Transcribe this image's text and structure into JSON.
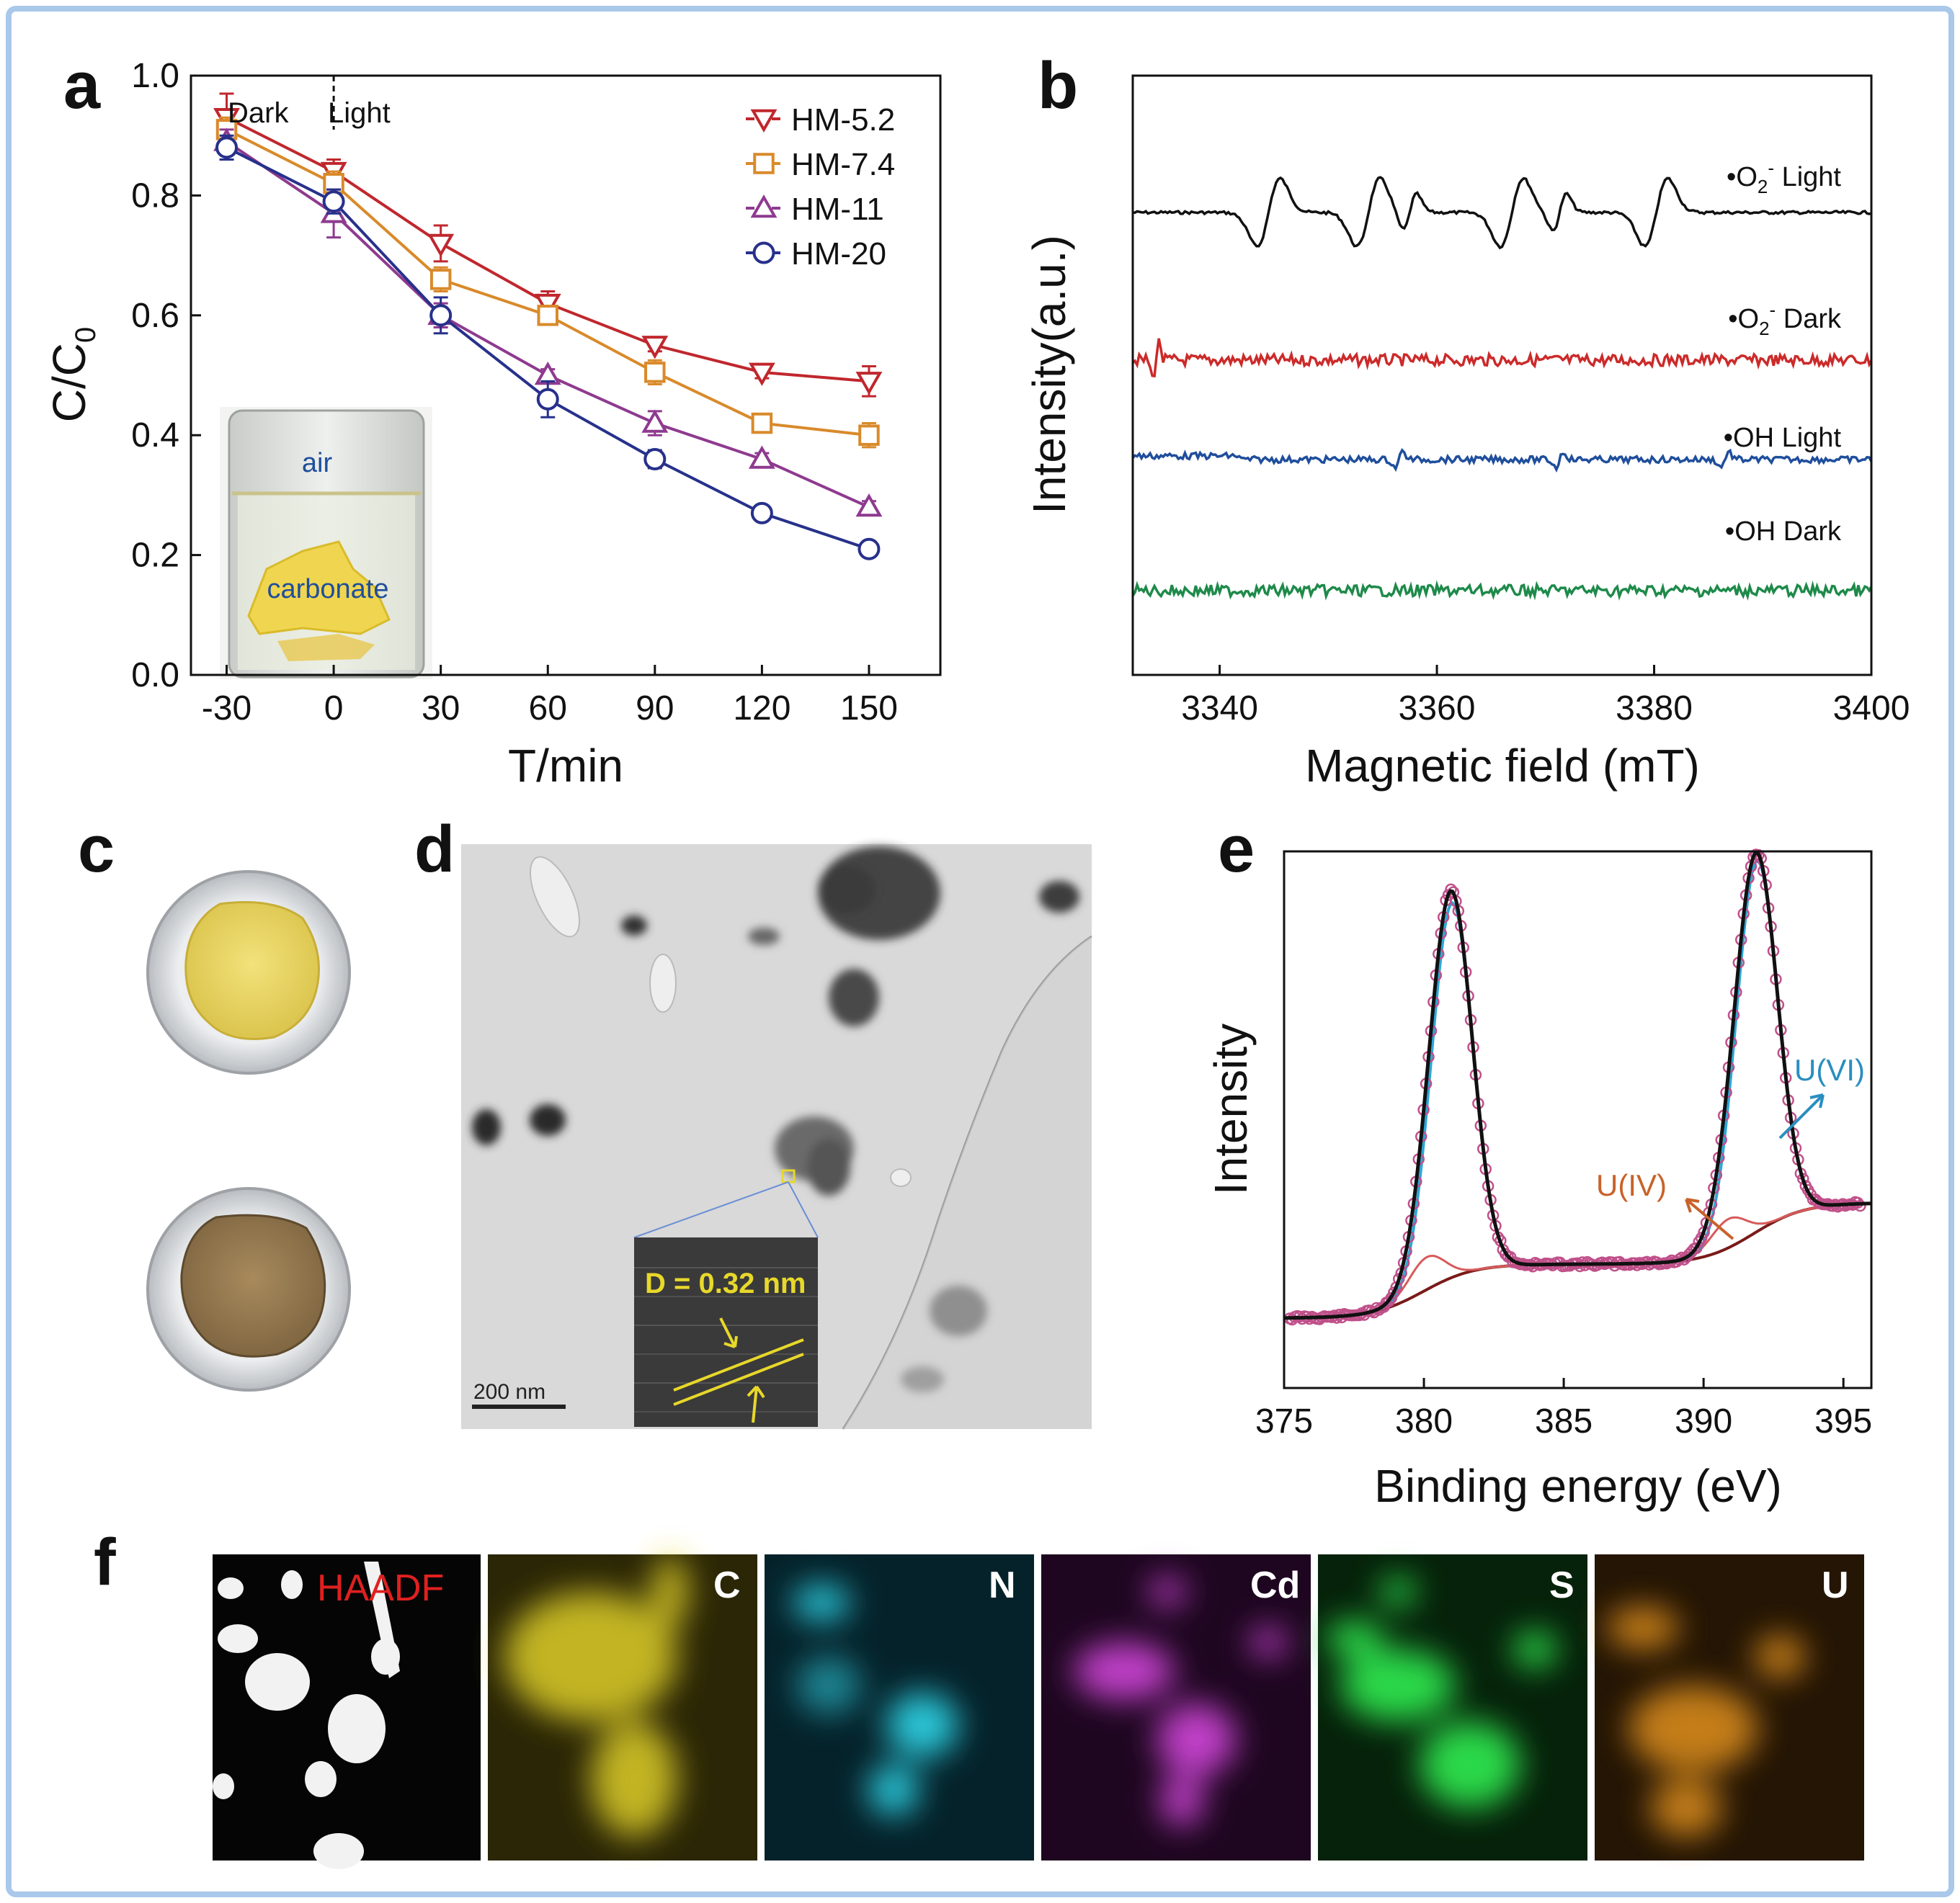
{
  "colors": {
    "frame": "#a9c8ea",
    "hm52": "#c0272d",
    "hm74": "#d98a2b",
    "hm11": "#8e3a8f",
    "hm20": "#27318b",
    "epr_o2_light": "#111111",
    "epr_o2_dark": "#cc2a2a",
    "epr_oh_light": "#1f4e9c",
    "epr_oh_dark": "#1e8a4a",
    "xps_data": "#c0508a",
    "xps_envelope": "#111111",
    "xps_uvi": "#2ea6d6",
    "xps_uiv": "#d85a5a",
    "xps_bg": "#7a1a1a",
    "label_uvi": "#2a8ec0",
    "label_uiv": "#c8622a",
    "map_c": "#e8d82a",
    "map_n": "#2bc6d8",
    "map_cd": "#c040c8",
    "map_s": "#2bd84a",
    "map_u": "#e0901a"
  },
  "panel_labels": {
    "a": "a",
    "b": "b",
    "c": "c",
    "d": "d",
    "e": "e",
    "f": "f"
  },
  "chart_data": [
    {
      "id": "a",
      "type": "line",
      "xlabel": "T/min",
      "ylabel": "C/C0",
      "ylabel_main": "C/C",
      "ylabel_sub": "0",
      "xlim": [
        -40,
        170
      ],
      "ylim": [
        0.0,
        1.0
      ],
      "xticks": [
        -30,
        0,
        30,
        60,
        90,
        120,
        150
      ],
      "yticks": [
        "0.0",
        "0.2",
        "0.4",
        "0.6",
        "0.8",
        "1.0"
      ],
      "annotations": {
        "dark": "Dark",
        "light": "Light"
      },
      "inset_labels": {
        "air": "air",
        "carbonate": "carbonate"
      },
      "x": [
        -30,
        0,
        30,
        60,
        90,
        120,
        150
      ],
      "series": [
        {
          "name": "HM-5.2",
          "marker": "triangle-down",
          "values": [
            0.93,
            0.84,
            0.72,
            0.62,
            0.55,
            0.505,
            0.49
          ],
          "errors": [
            0.04,
            0.02,
            0.03,
            0.02,
            0.01,
            0.01,
            0.025
          ]
        },
        {
          "name": "HM-7.4",
          "marker": "square",
          "values": [
            0.91,
            0.82,
            0.66,
            0.6,
            0.505,
            0.42,
            0.4
          ],
          "errors": [
            0.02,
            0.02,
            0.02,
            0.015,
            0.02,
            0.01,
            0.02
          ]
        },
        {
          "name": "HM-11",
          "marker": "triangle-up",
          "values": [
            0.89,
            0.77,
            0.6,
            0.5,
            0.42,
            0.36,
            0.28
          ],
          "errors": [
            0.02,
            0.04,
            0.02,
            0.01,
            0.02,
            0.01,
            0.01
          ]
        },
        {
          "name": "HM-20",
          "marker": "circle",
          "values": [
            0.88,
            0.79,
            0.6,
            0.46,
            0.36,
            0.27,
            0.21
          ],
          "errors": [
            0.02,
            0.02,
            0.03,
            0.03,
            0.015,
            0.01,
            0.01
          ]
        }
      ]
    },
    {
      "id": "b",
      "type": "line",
      "xlabel": "Magnetic field (mT)",
      "ylabel": "Intensity(a.u.)",
      "xlim": [
        3332,
        3400
      ],
      "xticks": [
        3340,
        3360,
        3380,
        3400
      ],
      "series": [
        {
          "name": "•O2- Light",
          "label_main": "•O",
          "label_sub": "2",
          "label_sup": "-",
          "label_tail": " Light",
          "kind": "quartet"
        },
        {
          "name": "•O2- Dark",
          "label_main": "•O",
          "label_sub": "2",
          "label_sup": "-",
          "label_tail": " Dark",
          "kind": "noise"
        },
        {
          "name": "•OH Light",
          "label_main": "•OH Light",
          "kind": "small"
        },
        {
          "name": "•OH Dark",
          "label_main": "•OH Dark",
          "kind": "noise"
        }
      ]
    },
    {
      "id": "e",
      "type": "line",
      "xlabel": "Binding energy (eV)",
      "ylabel": "Intensity",
      "xlim": [
        375,
        396
      ],
      "xticks": [
        375,
        380,
        385,
        390,
        395
      ],
      "annotations": {
        "uvi": "U(VI)",
        "uiv": "U(IV)"
      },
      "peaks": {
        "uvi": [
          381.0,
          391.9
        ],
        "uiv": [
          380.1,
          390.9
        ]
      }
    }
  ],
  "panel_d": {
    "scale_bar": "200 nm",
    "inset_label": "D = 0.32 nm"
  },
  "panel_f": {
    "maps": [
      "HAADF",
      "C",
      "N",
      "Cd",
      "S",
      "U"
    ]
  }
}
